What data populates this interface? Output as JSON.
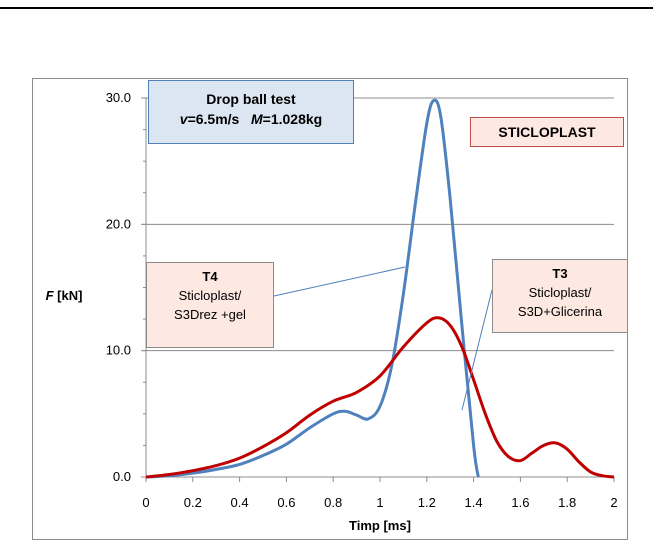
{
  "chart_data": {
    "type": "line",
    "xlabel": "Timp [ms]",
    "ylabel": "F [kN]",
    "xlim": [
      0,
      2
    ],
    "ylim": [
      0,
      30
    ],
    "x_ticks": [
      "0",
      "0.2",
      "0.4",
      "0.6",
      "0.8",
      "1",
      "1.2",
      "1.4",
      "1.6",
      "1.8",
      "2"
    ],
    "y_ticks": [
      "0.0",
      "10.0",
      "20.0",
      "30.0"
    ],
    "grid": "horizontal",
    "title_box": {
      "line1": "Drop ball test",
      "v_label": "v",
      "v_value": "=6.5m/s",
      "m_label": "M",
      "m_value": "=1.028kg"
    },
    "brand_label": "STICLOPLAST",
    "annotations": [
      {
        "title": "T4",
        "line1": "Sticloplast/",
        "line2": "S3Drez +gel"
      },
      {
        "title": "T3",
        "line1": "Sticloplast/",
        "line2": "S3D+Glicerina"
      }
    ],
    "series": [
      {
        "color": "#4f81bd",
        "x": [
          0,
          0.1,
          0.2,
          0.3,
          0.4,
          0.5,
          0.6,
          0.7,
          0.8,
          0.85,
          0.9,
          0.95,
          1.0,
          1.05,
          1.1,
          1.15,
          1.2,
          1.23,
          1.26,
          1.3,
          1.35,
          1.4,
          1.42
        ],
        "y": [
          0,
          0.1,
          0.3,
          0.6,
          1.0,
          1.7,
          2.6,
          3.9,
          5.0,
          5.2,
          4.9,
          4.6,
          5.6,
          8.8,
          14.5,
          21.5,
          28.0,
          29.8,
          28.5,
          22.0,
          12.0,
          2.5,
          0
        ]
      },
      {
        "color": "#c00000",
        "x": [
          0,
          0.1,
          0.2,
          0.3,
          0.4,
          0.5,
          0.6,
          0.7,
          0.8,
          0.9,
          1.0,
          1.1,
          1.2,
          1.25,
          1.3,
          1.35,
          1.4,
          1.45,
          1.5,
          1.55,
          1.6,
          1.65,
          1.7,
          1.75,
          1.8,
          1.85,
          1.9,
          1.95,
          2.0
        ],
        "y": [
          0,
          0.2,
          0.5,
          0.9,
          1.5,
          2.4,
          3.5,
          4.9,
          6.0,
          6.7,
          8.0,
          10.3,
          12.2,
          12.6,
          12.0,
          10.3,
          7.7,
          5.0,
          2.8,
          1.6,
          1.3,
          1.9,
          2.5,
          2.7,
          2.2,
          1.2,
          0.4,
          0.1,
          0
        ]
      }
    ]
  }
}
